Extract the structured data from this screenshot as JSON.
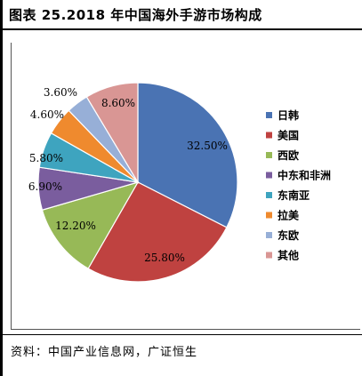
{
  "title": "图表 25.2018 年中国海外手游市场构成",
  "source": "资料：中国产业信息网，广证恒生",
  "chart_data": {
    "type": "pie",
    "unit": "%",
    "start_angle_deg": 90,
    "direction": "clockwise",
    "legend_position": "right",
    "slices": [
      {
        "name": "日韩",
        "value": 32.5,
        "label": "32.50%",
        "color": "#4a73b3"
      },
      {
        "name": "美国",
        "value": 25.8,
        "label": "25.80%",
        "color": "#bf4240"
      },
      {
        "name": "西欧",
        "value": 12.2,
        "label": "12.20%",
        "color": "#97b957"
      },
      {
        "name": "中东和非洲",
        "value": 6.9,
        "label": "6.90%",
        "color": "#7a5d9e"
      },
      {
        "name": "东南亚",
        "value": 5.8,
        "label": "5.80%",
        "color": "#3ea4bf"
      },
      {
        "name": "拉美",
        "value": 4.6,
        "label": "4.60%",
        "color": "#ef8a2e"
      },
      {
        "name": "东欧",
        "value": 3.6,
        "label": "3.60%",
        "color": "#97afd7"
      },
      {
        "name": "其他",
        "value": 8.6,
        "label": "8.60%",
        "color": "#d99694"
      }
    ]
  }
}
